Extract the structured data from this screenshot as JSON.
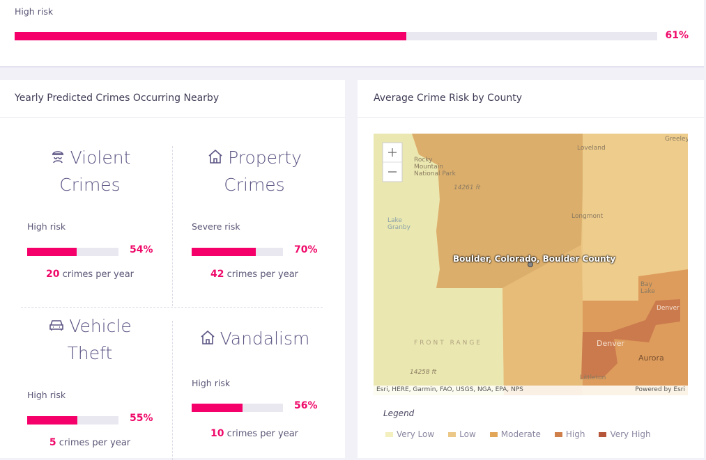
{
  "top_risk": {
    "label": "High risk",
    "value": 61,
    "value_label": "61%"
  },
  "crimes_panel": {
    "title": "Yearly Predicted Crimes Occurring Nearby",
    "items": [
      {
        "title_lines": [
          "Violent",
          "Crimes"
        ],
        "risk": "High risk",
        "value": 54,
        "value_label": "54%",
        "count": 20,
        "count_unit": "crimes per year"
      },
      {
        "title_lines": [
          "Property",
          "Crimes"
        ],
        "risk": "Severe risk",
        "value": 70,
        "value_label": "70%",
        "count": 42,
        "count_unit": "crimes per year"
      },
      {
        "title_lines": [
          "Vehicle",
          "Theft"
        ],
        "risk": "High risk",
        "value": 55,
        "value_label": "55%",
        "count": 5,
        "count_unit": "crimes per year"
      },
      {
        "title_lines": [
          "Vandalism"
        ],
        "risk": "High risk",
        "value": 56,
        "value_label": "56%",
        "count": 10,
        "count_unit": "crimes per year"
      }
    ]
  },
  "map_panel": {
    "title": "Average Crime Risk by County",
    "labels": [
      "Greeley",
      "Loveland",
      "Rocky Mountain National Park",
      "14261 ft",
      "Longmont",
      "Lake Granby",
      "Boulder, Colorado, Boulder County",
      "Bay Lake",
      "Denver",
      "Denver",
      "Aurora",
      "Littleton",
      "FRONT RANGE",
      "14258 ft"
    ],
    "attribution": "Esri, HERE, Garmin, FAO, USGS, NGA, EPA, NPS",
    "powered_by": "Powered by Esri",
    "legend": {
      "title": "Legend",
      "items": [
        {
          "name": "Very Low",
          "color": "#f4efbe"
        },
        {
          "name": "Low",
          "color": "#ecc888"
        },
        {
          "name": "Moderate",
          "color": "#e2a659"
        },
        {
          "name": "High",
          "color": "#cf7f4a"
        },
        {
          "name": "Very High",
          "color": "#b5553a"
        }
      ]
    }
  }
}
